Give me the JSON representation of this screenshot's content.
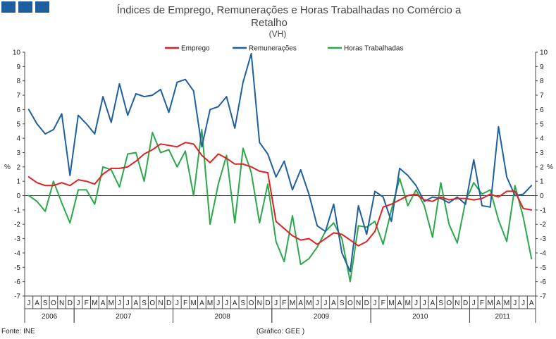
{
  "header": {
    "title_line1": "Índices de Emprego, Remunerações e Horas Trabalhadas no Comércio a",
    "title_line2": "Retalho",
    "subtitle": "(VH)",
    "brand_color": "#1f5f9f"
  },
  "footer": {
    "source": "Fonte: INE",
    "credit": "(Gráfico: GEE )"
  },
  "chart_data": {
    "type": "line",
    "title": "Índices de Emprego, Remunerações e Horas Trabalhadas no Comércio a Retalho",
    "subtitle": "(VH)",
    "ylabel_left": "%",
    "ylabel_right": "%",
    "ylim": [
      -7,
      10
    ],
    "yticks": [
      10,
      9,
      8,
      7,
      6,
      5,
      4,
      3,
      2,
      1,
      0,
      -1,
      -2,
      -3,
      -4,
      -5,
      -6,
      -7
    ],
    "grid": false,
    "legend_position": "top-center",
    "categories": [
      "J",
      "A",
      "S",
      "O",
      "N",
      "D",
      "J",
      "F",
      "M",
      "A",
      "M",
      "J",
      "J",
      "A",
      "S",
      "O",
      "N",
      "D",
      "J",
      "F",
      "M",
      "A",
      "M",
      "J",
      "J",
      "A",
      "S",
      "O",
      "N",
      "D",
      "J",
      "F",
      "M",
      "A",
      "M",
      "J",
      "J",
      "A",
      "S",
      "O",
      "N",
      "D",
      "J",
      "F",
      "M",
      "A",
      "M",
      "J",
      "J",
      "A",
      "S",
      "O",
      "N",
      "D",
      "J",
      "F",
      "M",
      "A",
      "M",
      "J",
      "J",
      "A"
    ],
    "years": [
      {
        "label": "2006",
        "start": 0,
        "count": 6
      },
      {
        "label": "2007",
        "start": 6,
        "count": 12
      },
      {
        "label": "2008",
        "start": 18,
        "count": 12
      },
      {
        "label": "2009",
        "start": 30,
        "count": 12
      },
      {
        "label": "2010",
        "start": 42,
        "count": 12
      },
      {
        "label": "2011",
        "start": 54,
        "count": 8
      }
    ],
    "series": [
      {
        "name": "Emprego",
        "color": "#e02020",
        "values": [
          1.3,
          0.9,
          0.7,
          0.7,
          0.9,
          0.7,
          1.1,
          1.0,
          0.8,
          1.5,
          1.9,
          1.9,
          2.0,
          2.4,
          2.9,
          3.2,
          3.6,
          3.5,
          3.4,
          3.7,
          3.6,
          2.8,
          2.3,
          2.9,
          2.6,
          2.2,
          2.2,
          2.0,
          1.7,
          1.6,
          -1.8,
          -2.3,
          -2.8,
          -3.1,
          -3.0,
          -3.4,
          -3.0,
          -2.6,
          -2.7,
          -3.1,
          -3.5,
          -3.2,
          -2.5,
          -0.8,
          -0.6,
          -0.3,
          0.0,
          0.1,
          -0.3,
          -0.4,
          -0.1,
          -0.3,
          -0.2,
          -0.2,
          -0.3,
          -0.2,
          0.1,
          -0.1,
          0.3,
          0.3,
          -0.9,
          -1.0
        ]
      },
      {
        "name": "Remunerações",
        "color": "#1f5f9f",
        "values": [
          6.0,
          5.0,
          4.3,
          4.6,
          5.7,
          1.4,
          5.6,
          5.0,
          4.3,
          6.9,
          5.1,
          7.8,
          5.6,
          7.1,
          6.9,
          7.0,
          7.4,
          5.8,
          7.9,
          8.1,
          7.3,
          3.4,
          6.0,
          6.2,
          6.9,
          4.7,
          7.9,
          9.9,
          3.7,
          2.9,
          1.3,
          2.4,
          0.4,
          1.8,
          0.1,
          -2.1,
          -2.5,
          -0.6,
          -4.0,
          -5.3,
          -0.7,
          -2.7,
          0.3,
          -0.1,
          -1.8,
          1.9,
          1.4,
          0.7,
          -0.4,
          -0.1,
          -0.2,
          -0.5,
          -0.1,
          -0.6,
          2.5,
          -0.7,
          -0.8,
          4.8,
          1.3,
          0.0,
          0.1,
          0.7
        ]
      },
      {
        "name": "Horas Trabalhadas",
        "color": "#2aa84a",
        "values": [
          0.0,
          -0.4,
          -1.1,
          1.0,
          -0.5,
          -1.9,
          0.4,
          0.4,
          -0.6,
          2.0,
          1.8,
          0.6,
          2.9,
          3.0,
          1.0,
          4.4,
          3.0,
          3.2,
          2.0,
          3.1,
          0.0,
          4.6,
          -2.0,
          0.8,
          2.8,
          -1.9,
          3.3,
          1.6,
          -1.9,
          0.8,
          -3.2,
          -4.6,
          -1.4,
          -4.8,
          -4.4,
          -3.6,
          -2.5,
          -1.9,
          -3.0,
          -6.0,
          -2.1,
          -2.2,
          -1.8,
          -3.4,
          -1.0,
          1.2,
          -0.7,
          0.4,
          -0.7,
          -2.9,
          0.9,
          -2.0,
          -3.3,
          -0.4,
          0.9,
          0.1,
          0.4,
          -1.7,
          -3.2,
          0.7,
          -1.5,
          -4.4
        ]
      }
    ]
  }
}
